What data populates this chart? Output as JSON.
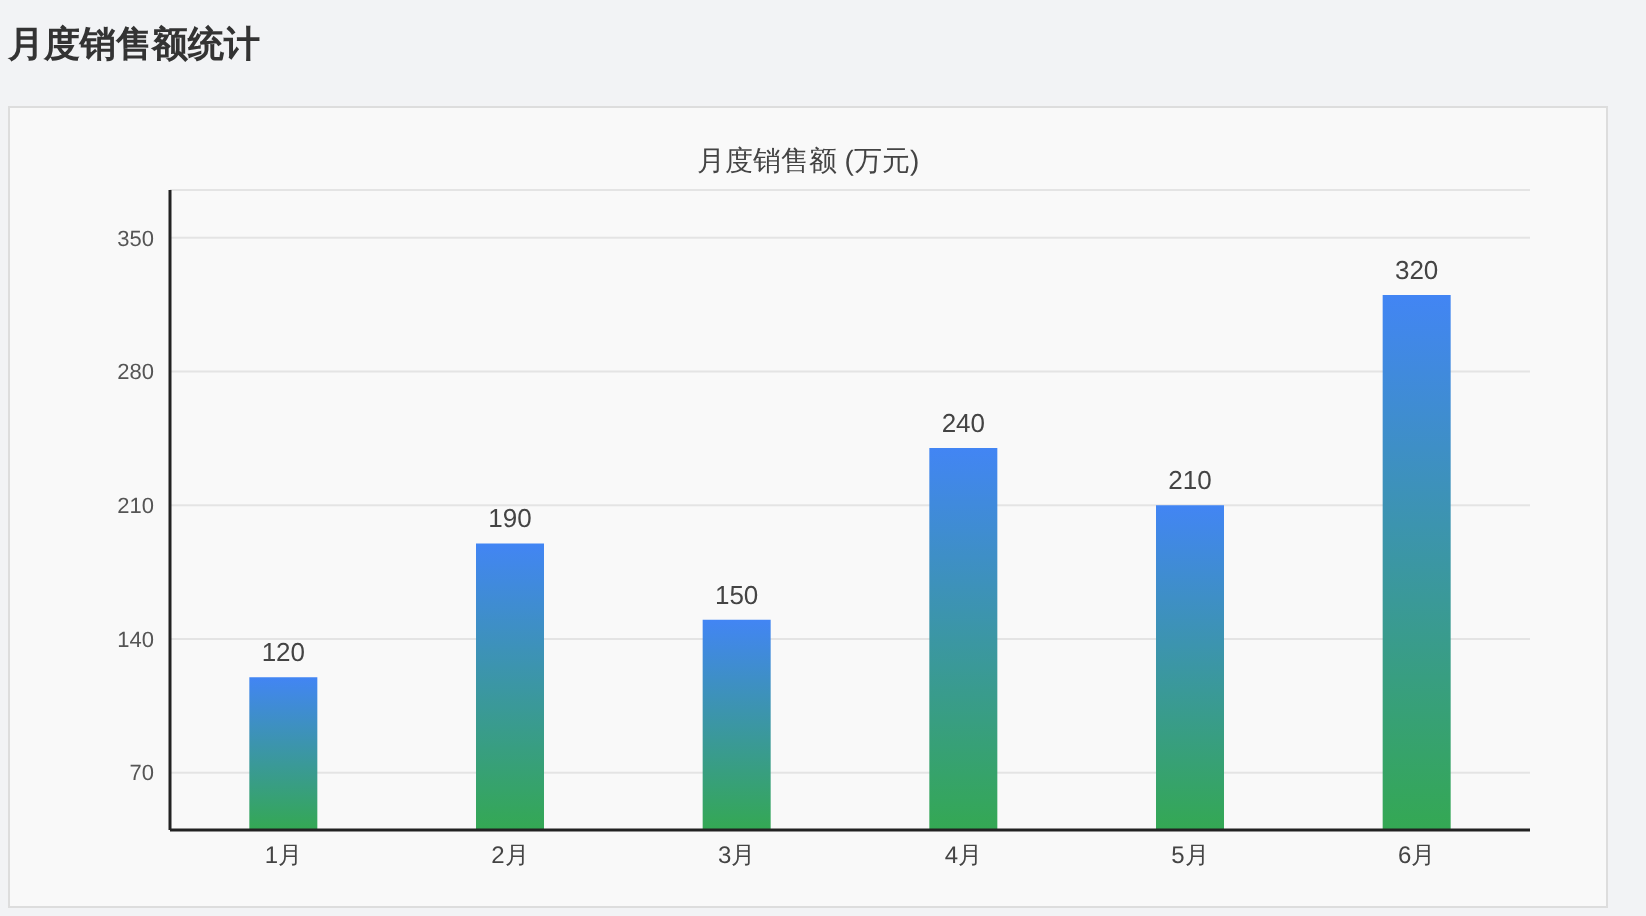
{
  "chart_data": {
    "type": "bar",
    "title": "月度销售额统计",
    "subtitle": "月度销售额 (万元)",
    "categories": [
      "1月",
      "2月",
      "3月",
      "4月",
      "5月",
      "6月"
    ],
    "values": [
      120,
      190,
      150,
      240,
      210,
      320
    ],
    "color": "#4285f4",
    "ylim": [
      40,
      375
    ],
    "yticks": [
      70,
      140,
      210,
      280,
      350
    ],
    "grid": "y",
    "data_labels": true
  }
}
